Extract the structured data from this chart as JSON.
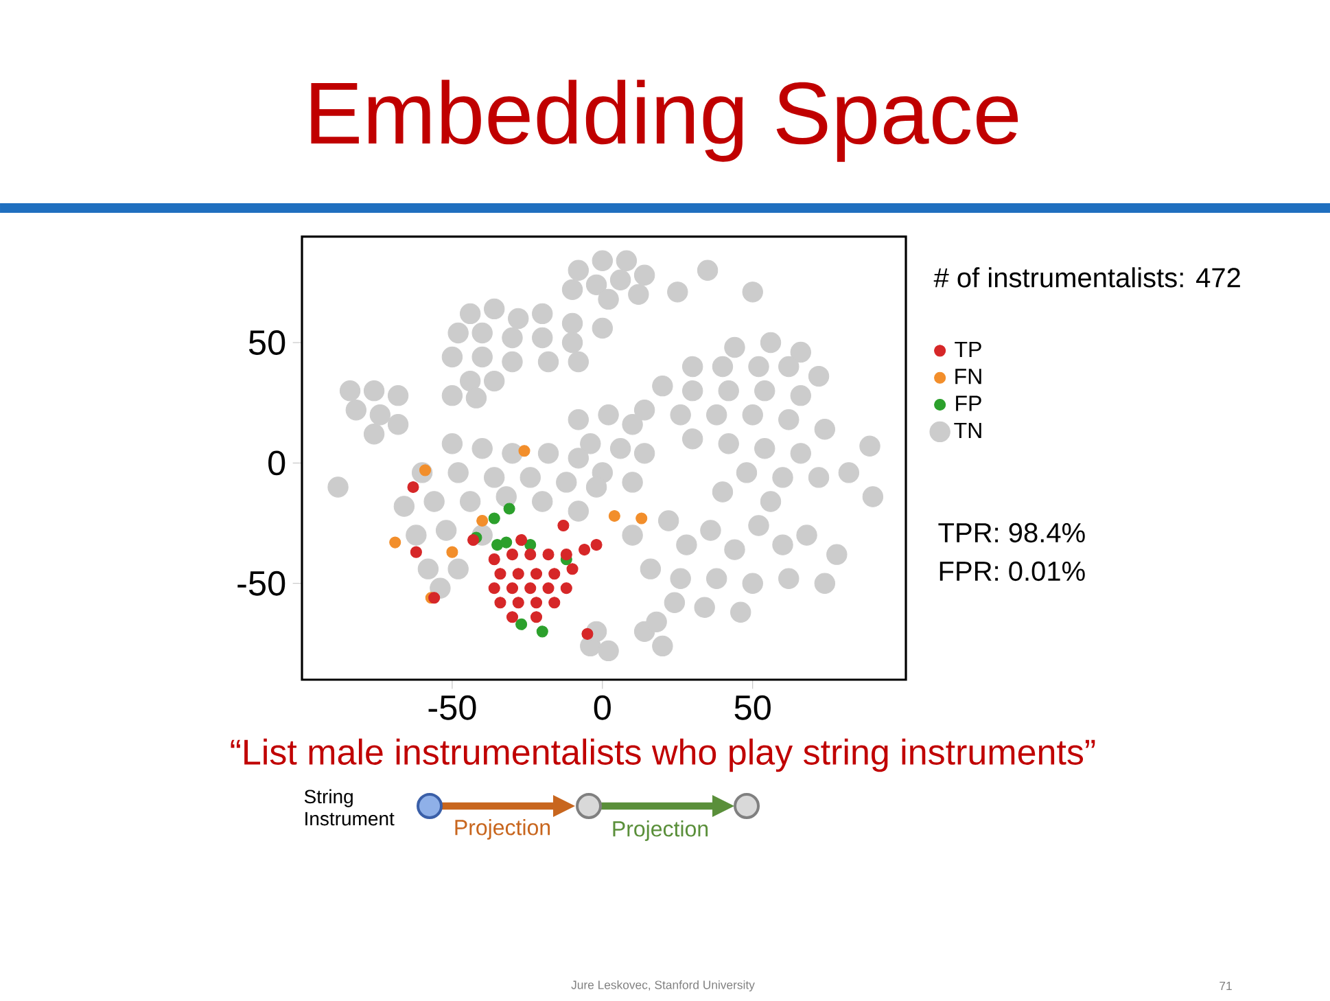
{
  "chart_data": {
    "type": "scatter",
    "title": "Embedding Space",
    "subtitle": "“List male instrumentalists who play string instruments”",
    "xlim": [
      -100,
      101
    ],
    "ylim": [
      -90,
      94
    ],
    "xticks": [
      -50,
      0,
      50
    ],
    "yticks": [
      -50,
      0,
      50
    ],
    "marker": "circle",
    "legend": "right",
    "grid": false,
    "series": [
      {
        "name": "TP",
        "color": "#d62728",
        "x": [
          -36,
          -30,
          -24,
          -18,
          -12,
          -6,
          -2,
          -34,
          -28,
          -22,
          -16,
          -10,
          -36,
          -30,
          -24,
          -18,
          -12,
          -34,
          -28,
          -22,
          -16,
          -30,
          -22,
          -63,
          -62,
          -56,
          -13,
          -5,
          -43,
          -27
        ],
        "values": [
          -40,
          -38,
          -38,
          -38,
          -38,
          -36,
          -34,
          -46,
          -46,
          -46,
          -46,
          -44,
          -52,
          -52,
          -52,
          -52,
          -52,
          -58,
          -58,
          -58,
          -58,
          -64,
          -64,
          -10,
          -37,
          -56,
          -26,
          -71,
          -32,
          -32
        ]
      },
      {
        "name": "FN",
        "color": "#f28e2b",
        "x": [
          -26,
          -59,
          -69,
          -50,
          -40,
          4,
          13,
          -57
        ],
        "values": [
          5,
          -3,
          -33,
          -37,
          -24,
          -22,
          -23,
          -56
        ]
      },
      {
        "name": "FP",
        "color": "#2ca02c",
        "x": [
          -31,
          -36,
          -35,
          -32,
          -24,
          -12,
          -27,
          -20,
          -42
        ],
        "values": [
          -19,
          -23,
          -34,
          -33,
          -34,
          -40,
          -67,
          -70,
          -31
        ]
      },
      {
        "name": "TN",
        "color": "#cccccc",
        "x": [
          -8,
          0,
          8,
          14,
          -10,
          -2,
          6,
          12,
          2,
          -44,
          -36,
          -28,
          -20,
          -10,
          -48,
          -40,
          -30,
          -20,
          -10,
          0,
          -50,
          -40,
          -30,
          -18,
          -8,
          -44,
          -36,
          -50,
          -42,
          -84,
          -76,
          -68,
          -82,
          -74,
          -68,
          -76,
          44,
          56,
          66,
          30,
          40,
          52,
          62,
          72,
          20,
          30,
          42,
          54,
          66,
          14,
          26,
          38,
          50,
          62,
          74,
          30,
          42,
          54,
          66,
          72,
          60,
          48,
          40,
          56,
          -8,
          2,
          10,
          -4,
          6,
          14,
          0,
          10,
          -50,
          -40,
          -30,
          -18,
          -8,
          -60,
          -48,
          -36,
          -24,
          -12,
          -2,
          -66,
          -56,
          -44,
          -32,
          -20,
          -8,
          -62,
          -52,
          -40,
          -58,
          -48,
          -54,
          10,
          22,
          28,
          36,
          44,
          52,
          60,
          68,
          78,
          16,
          26,
          38,
          50,
          62,
          74,
          34,
          46,
          24,
          14,
          20,
          18,
          -4,
          2,
          -2,
          -88,
          89,
          90,
          82,
          50,
          35,
          25
        ],
        "values": [
          80,
          84,
          84,
          78,
          72,
          74,
          76,
          70,
          68,
          62,
          64,
          60,
          62,
          58,
          54,
          54,
          52,
          52,
          50,
          56,
          44,
          44,
          42,
          42,
          42,
          34,
          34,
          28,
          27,
          30,
          30,
          28,
          22,
          20,
          16,
          12,
          48,
          50,
          46,
          40,
          40,
          40,
          40,
          36,
          32,
          30,
          30,
          30,
          28,
          22,
          20,
          20,
          20,
          18,
          14,
          10,
          8,
          6,
          4,
          -6,
          -6,
          -4,
          -12,
          -16,
          18,
          20,
          16,
          8,
          6,
          4,
          -4,
          -8,
          8,
          6,
          4,
          4,
          2,
          -4,
          -4,
          -6,
          -6,
          -8,
          -10,
          -18,
          -16,
          -16,
          -14,
          -16,
          -20,
          -30,
          -28,
          -30,
          -44,
          -44,
          -52,
          -30,
          -24,
          -34,
          -28,
          -36,
          -26,
          -34,
          -30,
          -38,
          -44,
          -48,
          -48,
          -50,
          -48,
          -50,
          -60,
          -62,
          -58,
          -70,
          -76,
          -66,
          -76,
          -78,
          -70,
          -10,
          7,
          -14,
          -4,
          71,
          80,
          71
        ]
      }
    ],
    "annotations": [
      "# of instrumentalists: 472",
      "TPR: 98.4%",
      "FPR: 0.01%",
      "String Instrument",
      "Projection",
      "Projection",
      "Jure Leskovec, Stanford University",
      "71"
    ]
  }
}
